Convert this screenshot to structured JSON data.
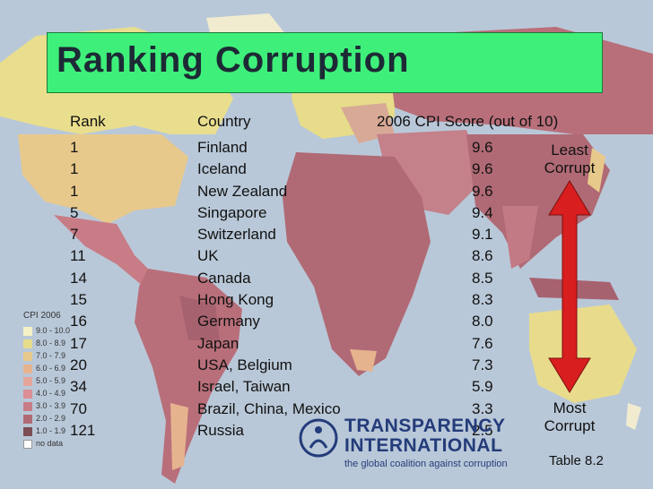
{
  "title": "Ranking Corruption",
  "headers": {
    "rank": "Rank",
    "country": "Country",
    "score": "2006 CPI Score (out of 10)"
  },
  "rows": [
    {
      "rank": "1",
      "country": "Finland",
      "score": "9.6"
    },
    {
      "rank": "1",
      "country": "Iceland",
      "score": "9.6"
    },
    {
      "rank": "1",
      "country": "New Zealand",
      "score": "9.6"
    },
    {
      "rank": "5",
      "country": "Singapore",
      "score": "9.4"
    },
    {
      "rank": "7",
      "country": "Switzerland",
      "score": "9.1"
    },
    {
      "rank": "11",
      "country": "UK",
      "score": "8.6"
    },
    {
      "rank": "14",
      "country": "Canada",
      "score": "8.5"
    },
    {
      "rank": "15",
      "country": "Hong Kong",
      "score": "8.3"
    },
    {
      "rank": "16",
      "country": "Germany",
      "score": "8.0"
    },
    {
      "rank": "17",
      "country": "Japan",
      "score": "7.6"
    },
    {
      "rank": "20",
      "country": "USA, Belgium",
      "score": "7.3"
    },
    {
      "rank": "34",
      "country": "Israel, Taiwan",
      "score": "5.9"
    },
    {
      "rank": "70",
      "country": "Brazil, China, Mexico",
      "score": "3.3"
    },
    {
      "rank": "121",
      "country": "Russia",
      "score": "2.5"
    }
  ],
  "least_label": [
    "Least",
    "Corrupt"
  ],
  "most_label": [
    "Most",
    "Corrupt"
  ],
  "legend": {
    "title": "CPI 2006",
    "items": [
      {
        "label": "9.0 - 10.0",
        "color": "#f5f1c6"
      },
      {
        "label": "8.0 - 8.9",
        "color": "#e6dc8a"
      },
      {
        "label": "7.0 - 7.9",
        "color": "#e8c98c"
      },
      {
        "label": "6.0 - 6.9",
        "color": "#e6b38f"
      },
      {
        "label": "5.0 - 5.9",
        "color": "#e4a69a"
      },
      {
        "label": "4.0 - 4.9",
        "color": "#dc8e96"
      },
      {
        "label": "3.0 - 3.9",
        "color": "#c87c86"
      },
      {
        "label": "2.0 - 2.9",
        "color": "#b06a75"
      },
      {
        "label": "1.0 - 1.9",
        "color": "#7d4d55"
      },
      {
        "label": "no data",
        "color": "#ffffff"
      }
    ]
  },
  "logo": {
    "line1": "TRANSPARENCY",
    "line2": "INTERNATIONAL",
    "tagline": "the global coalition against corruption"
  },
  "table_ref": "Table 8.2",
  "colors": {
    "ocean": "#b9c8d8",
    "title_bg": "#3ef07a",
    "arrow": "#d81e1e",
    "logo": "#243c7a"
  }
}
